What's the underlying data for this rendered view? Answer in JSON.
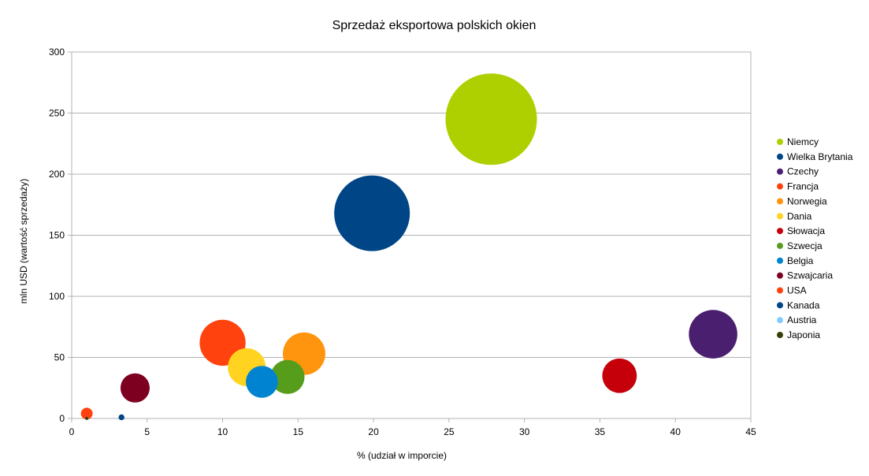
{
  "chart_data": {
    "type": "bubble",
    "title": "Sprzedaż eksportowa polskich okien",
    "xlabel": "% (udział w imporcie)",
    "ylabel": "mln USD (wartość sprzedaży)",
    "xlim": [
      0,
      45
    ],
    "ylim": [
      0,
      300
    ],
    "x_ticks": [
      0,
      5,
      10,
      15,
      20,
      25,
      30,
      35,
      40,
      45
    ],
    "y_ticks": [
      0,
      50,
      100,
      150,
      200,
      250,
      300
    ],
    "grid": "horizontal",
    "legend_position": "right",
    "series": [
      {
        "name": "Niemcy",
        "x": 27.8,
        "y": 245,
        "size": 245,
        "color": "#aecf00"
      },
      {
        "name": "Wielka Brytania",
        "x": 19.9,
        "y": 168,
        "size": 168,
        "color": "#004586"
      },
      {
        "name": "Czechy",
        "x": 42.5,
        "y": 69,
        "size": 69,
        "color": "#4b1f6f"
      },
      {
        "name": "Francja",
        "x": 10.0,
        "y": 62,
        "size": 62,
        "color": "#ff420e"
      },
      {
        "name": "Norwegia",
        "x": 15.4,
        "y": 53,
        "size": 53,
        "color": "#ff950e"
      },
      {
        "name": "Dania",
        "x": 11.6,
        "y": 42,
        "size": 42,
        "color": "#ffd320"
      },
      {
        "name": "Słowacja",
        "x": 36.3,
        "y": 35,
        "size": 35,
        "color": "#c5000b"
      },
      {
        "name": "Szwecja",
        "x": 14.3,
        "y": 34,
        "size": 34,
        "color": "#579d1c"
      },
      {
        "name": "Belgia",
        "x": 12.6,
        "y": 30,
        "size": 30,
        "color": "#0084d1"
      },
      {
        "name": "Szwajcaria",
        "x": 4.2,
        "y": 25,
        "size": 25,
        "color": "#7e0021"
      },
      {
        "name": "USA",
        "x": 1.0,
        "y": 4,
        "size": 4,
        "color": "#ff420e"
      },
      {
        "name": "Kanada",
        "x": 3.3,
        "y": 1,
        "size": 1,
        "color": "#004586"
      },
      {
        "name": "Austria",
        "x": 1.0,
        "y": 0.2,
        "size": 0.2,
        "color": "#83caff"
      },
      {
        "name": "Japonia",
        "x": 1.0,
        "y": 0.05,
        "size": 0.05,
        "color": "#314004"
      }
    ]
  }
}
